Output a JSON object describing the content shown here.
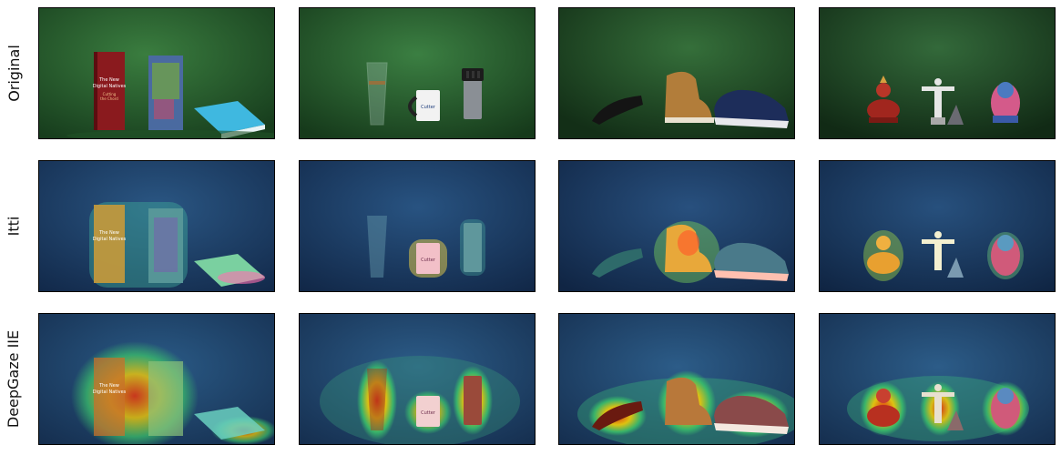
{
  "rows": [
    {
      "label": "Original"
    },
    {
      "label": "Itti"
    },
    {
      "label": "DeepGaze IIE"
    }
  ],
  "scenes": [
    {
      "name": "books",
      "book_text": [
        "The New",
        "Digital Natives",
        "Cutting",
        "the Chord"
      ]
    },
    {
      "name": "cups",
      "mug_text": "Cutter"
    },
    {
      "name": "shoes"
    },
    {
      "name": "statues"
    }
  ],
  "colors": {
    "background_green": "#2f6b35",
    "heat_blue": "#1c3f6e",
    "heat_hot": "#ff2a00",
    "heat_warm": "#ffd000"
  }
}
